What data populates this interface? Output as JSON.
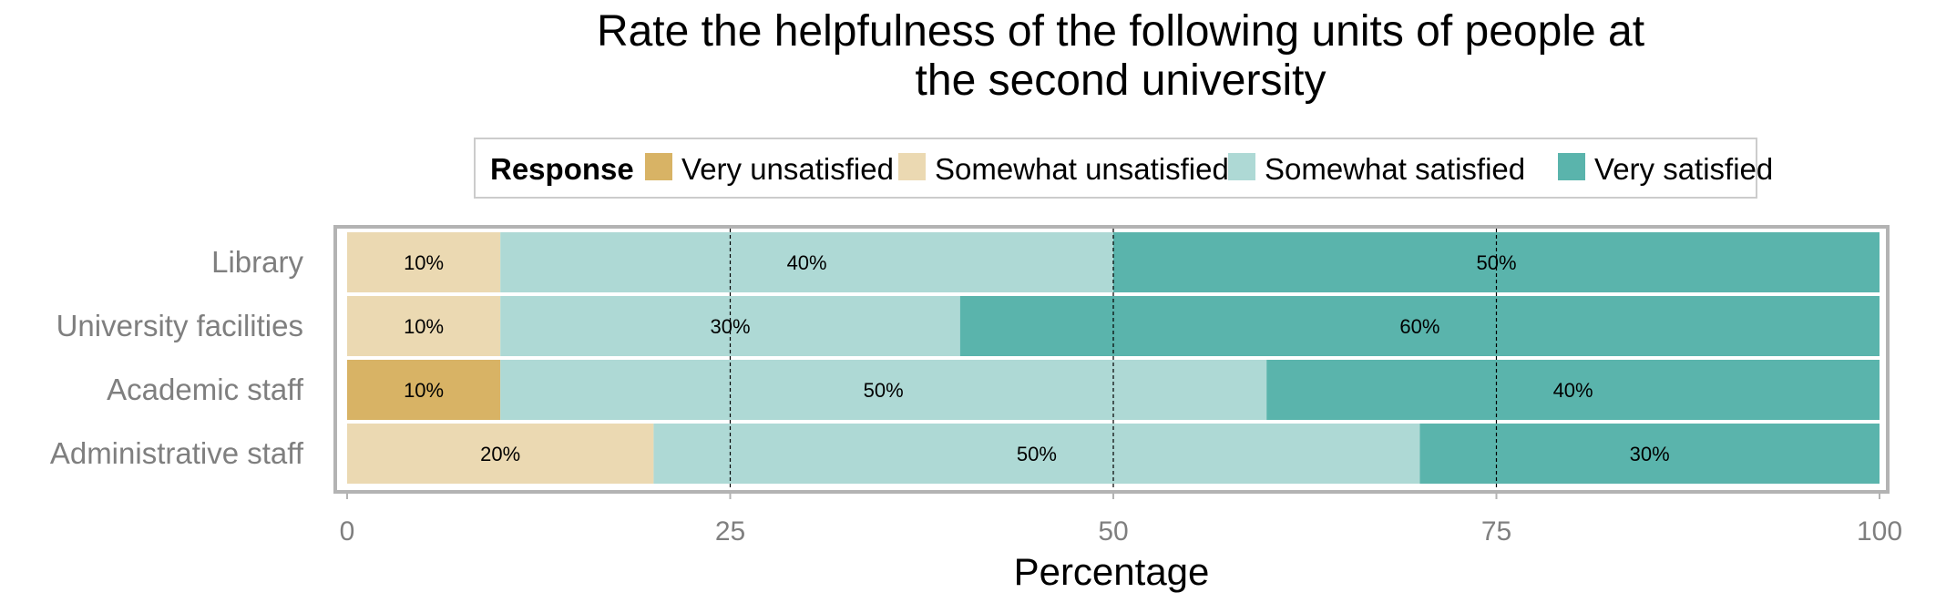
{
  "chart_data": {
    "type": "bar",
    "orientation": "horizontal",
    "stacked": true,
    "title_lines": [
      "Rate the helpfulness of the following units of people at",
      "the second university"
    ],
    "xlabel": "Percentage",
    "ylabel": "",
    "xlim": [
      0,
      100
    ],
    "xticks": [
      "0",
      "25",
      "50",
      "75",
      "100"
    ],
    "legend": {
      "title": "Response",
      "placement": "top"
    },
    "categories": [
      "Library",
      "University facilities",
      "Academic staff",
      "Administrative staff"
    ],
    "series": [
      {
        "name": "Very unsatisfied",
        "color": "#d8b365",
        "values": [
          0,
          0,
          10,
          0
        ],
        "labels": [
          "",
          "",
          "10%",
          ""
        ]
      },
      {
        "name": "Somewhat unsatisfied",
        "color": "#ebd9b2",
        "values": [
          10,
          10,
          0,
          20
        ],
        "labels": [
          "10%",
          "10%",
          "",
          "20%"
        ]
      },
      {
        "name": "Somewhat satisfied",
        "color": "#aed9d5",
        "values": [
          40,
          30,
          50,
          50
        ],
        "labels": [
          "40%",
          "30%",
          "50%",
          "50%"
        ]
      },
      {
        "name": "Very satisfied",
        "color": "#5ab4ac",
        "values": [
          50,
          60,
          40,
          30
        ],
        "labels": [
          "50%",
          "60%",
          "40%",
          "30%"
        ]
      }
    ],
    "gridlines": "dashed vertical at 25, 50, 75"
  }
}
